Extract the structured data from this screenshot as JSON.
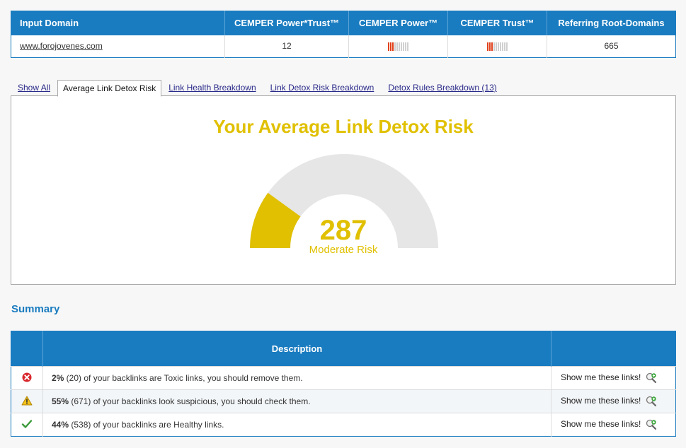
{
  "metrics": {
    "headers": [
      "Input Domain",
      "CEMPER Power*Trust™",
      "CEMPER Power™",
      "CEMPER Trust™",
      "Referring Root-Domains"
    ],
    "domain": "www.forojovenes.com",
    "power_trust": "12",
    "power_level": 3,
    "trust_level": 3,
    "bar_count": 10,
    "referring_root_domains": "665"
  },
  "tabs": [
    {
      "label": "Show All",
      "active": false
    },
    {
      "label": "Average Link Detox Risk",
      "active": true
    },
    {
      "label": "Link Health Breakdown",
      "active": false
    },
    {
      "label": "Link Detox Risk Breakdown",
      "active": false
    },
    {
      "label": "Detox Rules Breakdown (13)",
      "active": false
    }
  ],
  "gauge": {
    "title": "Your Average Link Detox Risk",
    "value": "287",
    "label": "Moderate Risk",
    "fill_fraction": 0.2,
    "color": "#e0c000",
    "track_color": "#e6e6e6"
  },
  "summary": {
    "title": "Summary",
    "header": "Description",
    "rows": [
      {
        "icon": "toxic-x-icon",
        "percent": "2%",
        "text": " (20) of your backlinks are Toxic links, you should remove them.",
        "action": "Show me these links!"
      },
      {
        "icon": "warning-icon",
        "percent": "55%",
        "text": " (671) of your backlinks look suspicious, you should check them.",
        "action": "Show me these links!"
      },
      {
        "icon": "checkmark-icon",
        "percent": "44%",
        "text": " (538) of your backlinks are Healthy links.",
        "action": "Show me these links!"
      }
    ]
  }
}
